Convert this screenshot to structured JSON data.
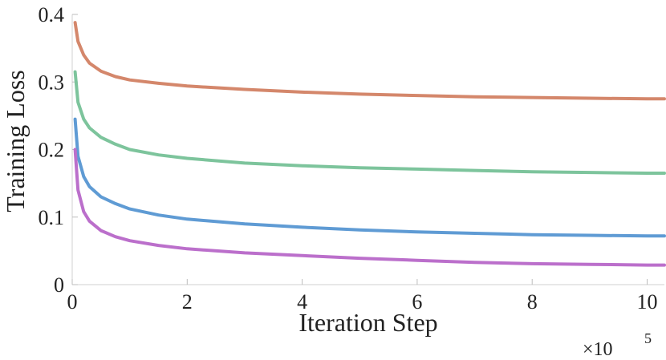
{
  "chart_data": {
    "type": "line",
    "title": "",
    "xlabel": "Iteration Step",
    "ylabel": "Training Loss",
    "x_exponent_label": {
      "base": "×10",
      "exp": "5"
    },
    "xlim": [
      0,
      10.3
    ],
    "ylim": [
      0,
      0.4
    ],
    "xticks": [
      0,
      2,
      4,
      6,
      8,
      10
    ],
    "xtick_labels": [
      "0",
      "2",
      "4",
      "6",
      "8",
      "10"
    ],
    "yticks": [
      0,
      0.1,
      0.2,
      0.3,
      0.4
    ],
    "ytick_labels": [
      "0",
      "0.1",
      "0.2",
      "0.3",
      "0.4"
    ],
    "grid": false,
    "legend": "none",
    "series": [
      {
        "color": "#d4876b",
        "x": [
          0.05,
          0.1,
          0.2,
          0.3,
          0.5,
          0.75,
          1,
          1.5,
          2,
          3,
          4,
          5,
          6,
          7,
          8,
          9,
          10,
          10.3
        ],
        "y": [
          0.388,
          0.36,
          0.34,
          0.328,
          0.316,
          0.308,
          0.303,
          0.298,
          0.294,
          0.289,
          0.285,
          0.282,
          0.28,
          0.278,
          0.277,
          0.276,
          0.275,
          0.275
        ]
      },
      {
        "color": "#7dc49c",
        "x": [
          0.05,
          0.1,
          0.2,
          0.3,
          0.5,
          0.75,
          1,
          1.5,
          2,
          3,
          4,
          5,
          6,
          7,
          8,
          9,
          10,
          10.3
        ],
        "y": [
          0.315,
          0.27,
          0.245,
          0.232,
          0.218,
          0.208,
          0.2,
          0.192,
          0.187,
          0.18,
          0.176,
          0.173,
          0.171,
          0.169,
          0.167,
          0.166,
          0.165,
          0.165
        ]
      },
      {
        "color": "#5f9bd4",
        "x": [
          0.05,
          0.1,
          0.2,
          0.3,
          0.5,
          0.75,
          1,
          1.5,
          2,
          3,
          4,
          5,
          6,
          7,
          8,
          9,
          10,
          10.3
        ],
        "y": [
          0.245,
          0.19,
          0.16,
          0.145,
          0.13,
          0.12,
          0.112,
          0.103,
          0.097,
          0.09,
          0.085,
          0.081,
          0.078,
          0.076,
          0.074,
          0.073,
          0.072,
          0.072
        ]
      },
      {
        "color": "#bb6fcb",
        "x": [
          0.05,
          0.1,
          0.2,
          0.3,
          0.5,
          0.75,
          1,
          1.5,
          2,
          3,
          4,
          5,
          6,
          7,
          8,
          9,
          10,
          10.3
        ],
        "y": [
          0.2,
          0.14,
          0.108,
          0.094,
          0.08,
          0.071,
          0.065,
          0.058,
          0.053,
          0.047,
          0.043,
          0.039,
          0.036,
          0.033,
          0.031,
          0.03,
          0.029,
          0.029
        ]
      }
    ]
  }
}
